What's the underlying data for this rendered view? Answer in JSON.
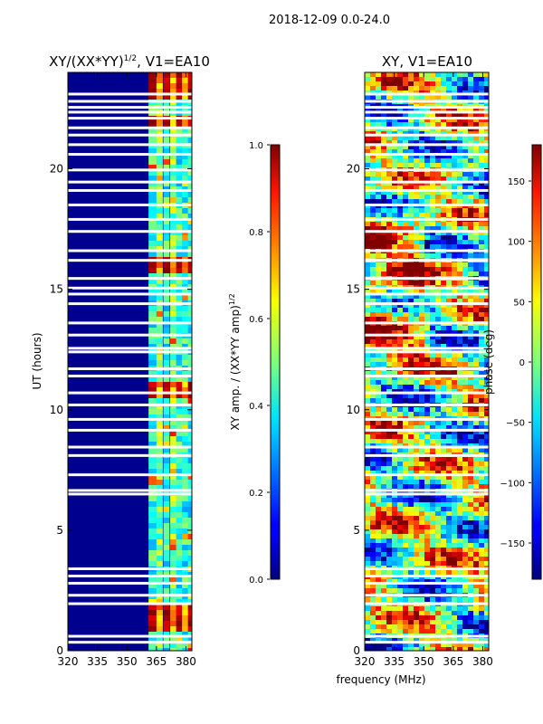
{
  "figure": {
    "suptitle": "2018-12-09 0.0-24.0",
    "xlabel_shared": "frequency (MHz)"
  },
  "chart_data": [
    {
      "type": "heatmap",
      "title": "XY/(XX*YY)",
      "title_superscript": "1/2",
      "title_suffix": ", V1=EA10",
      "ylabel": "UT (hours)",
      "x_ticks": [
        "320",
        "335",
        "350",
        "365",
        "380"
      ],
      "x_tick_values": [
        320,
        335,
        350,
        365,
        380
      ],
      "xlim": [
        320,
        383
      ],
      "y_ticks": [
        "0",
        "5",
        "10",
        "15",
        "20"
      ],
      "y_tick_values": [
        0,
        5,
        10,
        15,
        20
      ],
      "ylim": [
        0,
        24
      ],
      "colormap": "jet",
      "colorbar": {
        "label": "XY amp. / (XX*YY amp)",
        "label_superscript": "1/2",
        "range": [
          0.0,
          1.0
        ],
        "ticks": [
          "0.0",
          "0.2",
          "0.4",
          "0.6",
          "0.8",
          "1.0"
        ],
        "tick_values": [
          0.0,
          0.2,
          0.4,
          0.6,
          0.8,
          1.0
        ]
      }
    },
    {
      "type": "heatmap",
      "title": "XY, V1=EA10",
      "x_ticks": [
        "320",
        "335",
        "350",
        "365",
        "380"
      ],
      "x_tick_values": [
        320,
        335,
        350,
        365,
        380
      ],
      "xlim": [
        320,
        383
      ],
      "y_ticks": [
        "0",
        "5",
        "10",
        "15",
        "20"
      ],
      "y_tick_values": [
        0,
        5,
        10,
        15,
        20
      ],
      "ylim": [
        0,
        24
      ],
      "colormap": "jet",
      "colorbar": {
        "label": "phase (deg)",
        "range": [
          -180,
          180
        ],
        "ticks": [
          "−150",
          "−100",
          "−50",
          "0",
          "50",
          "100",
          "150"
        ],
        "tick_values": [
          -150,
          -100,
          -50,
          0,
          50,
          100,
          150
        ]
      }
    }
  ],
  "flagged_utc_hours": [
    0.35,
    0.6,
    1.95,
    2.3,
    2.8,
    3.1,
    3.4,
    6.5,
    6.65,
    7.3,
    8.1,
    8.45,
    9.15,
    9.6,
    10.2,
    10.7,
    11.4,
    11.7,
    12.4,
    12.55,
    13.1,
    13.6,
    14.4,
    14.8,
    15.05,
    15.45,
    16.2,
    16.6,
    17.4,
    17.9,
    18.5,
    19.1,
    19.45,
    19.95,
    20.6,
    21.0,
    21.4,
    21.7,
    22.1,
    22.35,
    22.55,
    22.8,
    23.1
  ]
}
